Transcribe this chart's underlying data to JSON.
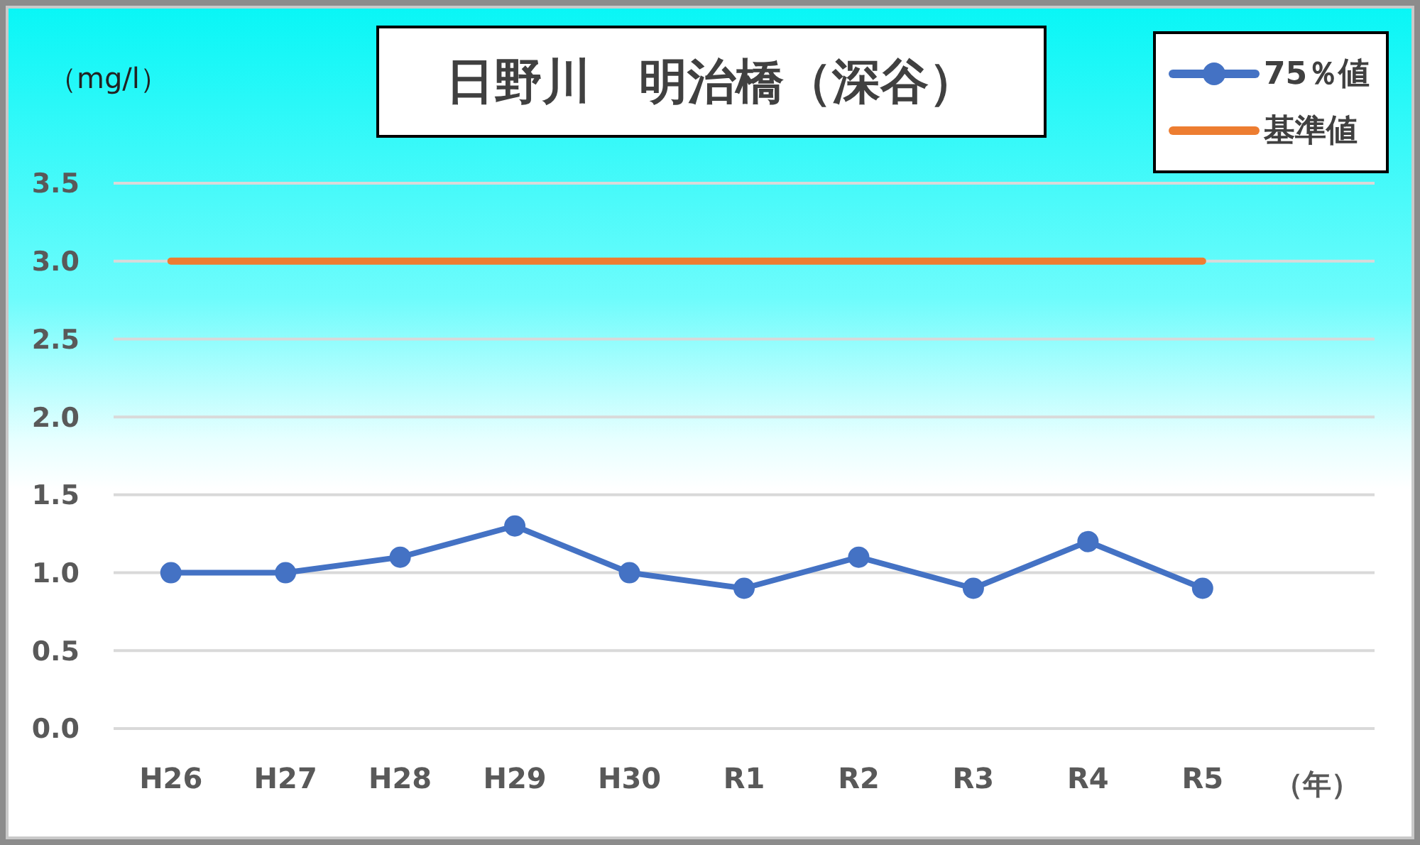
{
  "chart_data": {
    "type": "line",
    "title": "日野川　明治橋（深谷）",
    "ylabel": "（mg/l）",
    "xlabel": "（年）",
    "categories": [
      "H26",
      "H27",
      "H28",
      "H29",
      "H30",
      "R1",
      "R2",
      "R3",
      "R4",
      "R5"
    ],
    "series": [
      {
        "name": "75％値",
        "color": "#4472c4",
        "marker": "circle",
        "values": [
          1.0,
          1.0,
          1.1,
          1.3,
          1.0,
          0.9,
          1.1,
          0.9,
          1.2,
          0.9
        ]
      },
      {
        "name": "基準値",
        "color": "#ed7d31",
        "marker": "none",
        "values": [
          3.0,
          3.0,
          3.0,
          3.0,
          3.0,
          3.0,
          3.0,
          3.0,
          3.0,
          3.0
        ]
      }
    ],
    "ylim": [
      0,
      3.5
    ],
    "yticks": [
      {
        "value": 0,
        "label": "0.0"
      },
      0.5,
      {
        "value": 1,
        "label": "1.0"
      },
      1.5,
      {
        "value": 2,
        "label": "2.0"
      },
      2.5,
      {
        "value": 3,
        "label": "3.0"
      },
      3.5
    ],
    "grid": "y",
    "legend": "top right"
  }
}
